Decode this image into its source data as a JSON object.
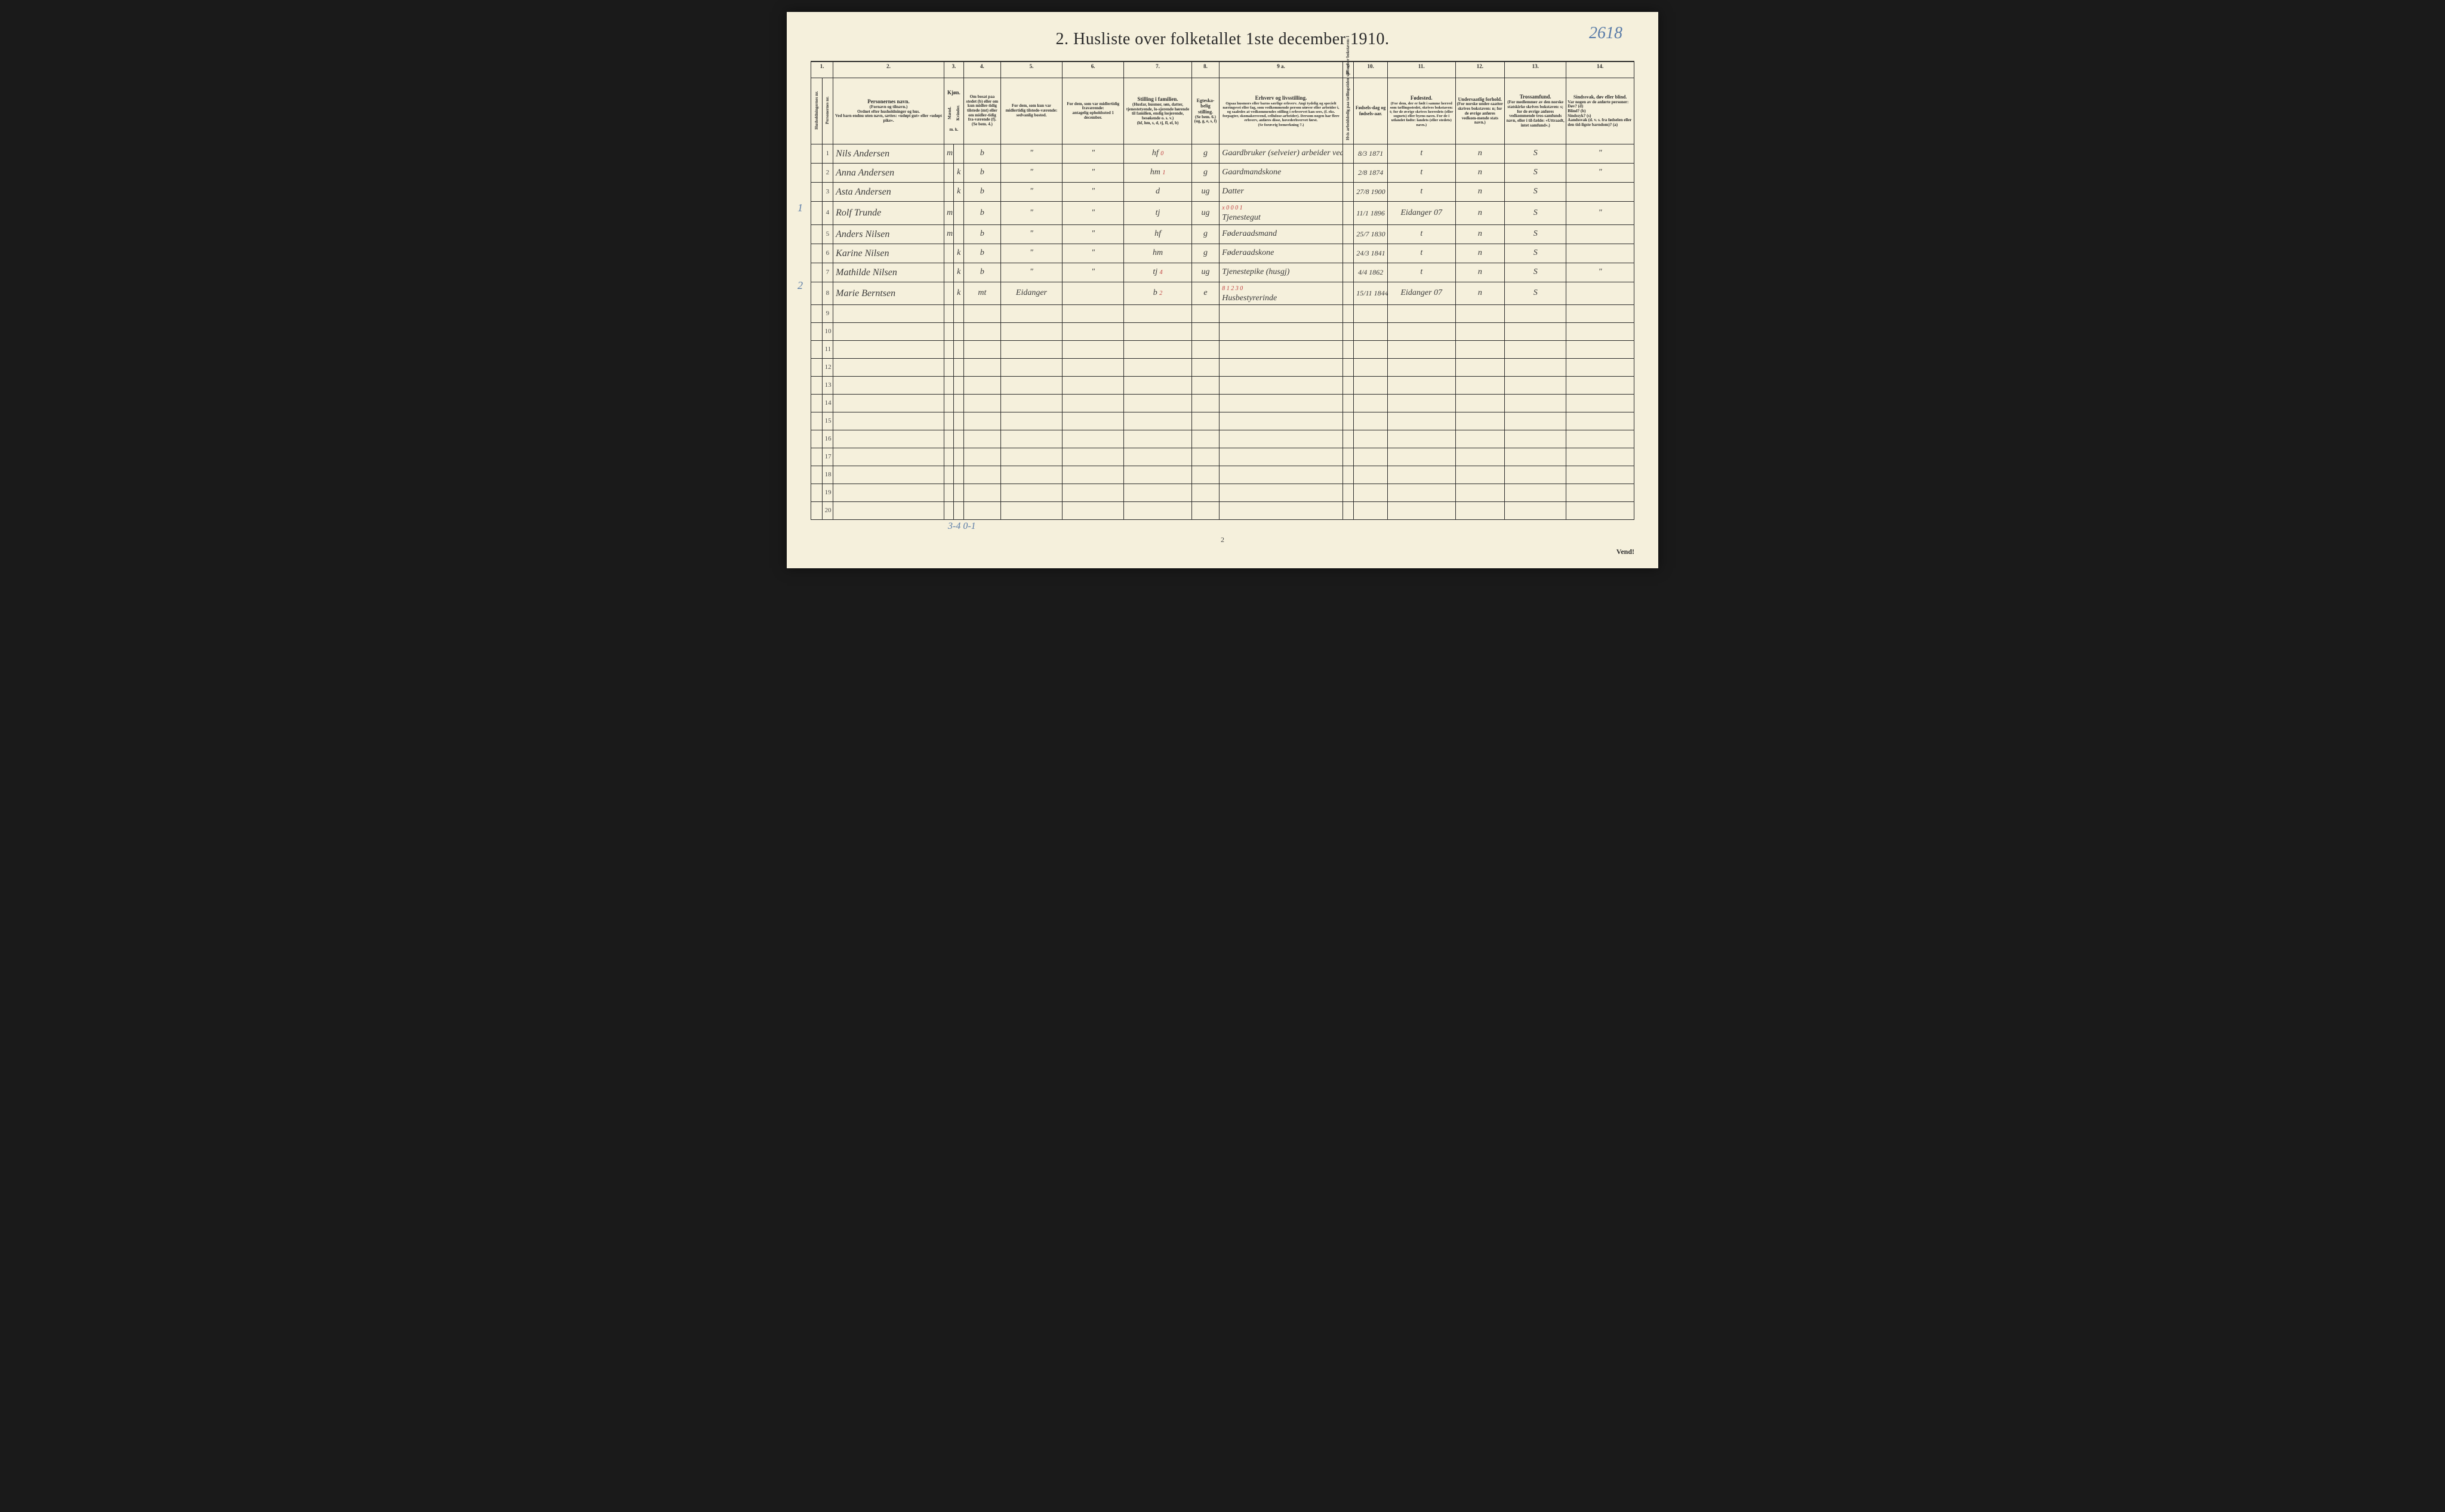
{
  "page_number_handwritten": "2618",
  "title": "2.  Husliste over folketallet 1ste december 1910.",
  "footer_page": "2",
  "vend": "Vend!",
  "bottom_pencil": "3-4    0-1",
  "margin_annotations": {
    "row1": "1",
    "row5": "2"
  },
  "column_numbers": [
    "1.",
    "2.",
    "3.",
    "4.",
    "5.",
    "6.",
    "7.",
    "8.",
    "9 a.",
    "9 b.",
    "10.",
    "11.",
    "12.",
    "13.",
    "14."
  ],
  "headers": {
    "col1": "Husholdningernes nr.",
    "col1b": "Personernes nr.",
    "col2_label": "Personernes navn.",
    "col2_sub": "(Fornavn og tilnavn.)\nOrdnet efter husholdninger og hus.\nVed barn endnu uten navn, sættes: «udøpt gut» eller «udøpt pike».",
    "col3_label": "Kjøn.",
    "col3_m": "Mænd.",
    "col3_k": "Kvinder.",
    "col3_mk": "m.  k.",
    "col4": "Om bosat paa stedet (b) eller om kun midler-tidig tilstede (mt) eller om midler-tidig fra-værende (f).\n(Se bem. 4.)",
    "col5": "For dem, som kun var midlertidig tilstede-værende:\nsedvanlig bosted.",
    "col6": "For dem, som var midlertidig fraværende:\nantagelig opholdssted 1 december.",
    "col7_label": "Stilling i familien.",
    "col7_sub": "(Husfar, husmor, søn, datter, tjenestetyende, lo-sjerende hørende til familien, enslig losjerende, besøkende o. s. v.)\n(hf, hm, s, d, tj, fl, el, b)",
    "col8_label": "Egteska-belig stilling.",
    "col8_sub": "(Se bem. 6.)\n(ug, g, e, s, f)",
    "col9a_label": "Erhverv og livsstilling.",
    "col9a_sub": "Ogsaa husmors eller barns særlige erhverv. Angi tydelig og specielt næringsvei eller fag, som vedkommende person utøver eller arbeider i, og saaledes at vedkommendes stilling i erhvervet kan sees, (f. eks. forpagter, skomakersvend, cellulose-arbeider). Dersom nogen har flere erhverv, anføres disse, hovederhvervet først.\n(Se forøvrig bemerkning 7.)",
    "col9b": "Hvis arbeidsledig paa tællingstiden sættes her bokstaven: l",
    "col10_label": "Fødsels-dag og fødsels-aar.",
    "col11_label": "Fødested.",
    "col11_sub": "(For dem, der er født i samme herred som tællingsstedet, skrives bokstaven: t; for de øvrige skrives herredets (eller sognets) eller byens navn. For de i utlandet fødte: landets (eller stedets) navn.)",
    "col12_label": "Undersaatlig forhold.",
    "col12_sub": "(For norske under-saatter skrives bokstaven: n; for de øvrige anføres vedkom-mende stats navn.)",
    "col13_label": "Trossamfund.",
    "col13_sub": "(For medlemmer av den norske statskirke skrives bokstaven: s; for de øvrige anføres vedkommende tros-samfunds navn, eller i til-fælde: «Uttraadt, intet samfund».)",
    "col14_label": "Sindssvak, døv eller blind.",
    "col14_sub": "Var nogen av de anførte personer:\nDøv?    (d)\nBlind?   (b)\nSindssyk? (s)\nAandssvak (d. v. s. fra fødselen eller den tid-ligste barndom)? (a)"
  },
  "rows": [
    {
      "num": "1",
      "name": "Nils Andersen",
      "sex": "m",
      "res": "b",
      "c5": "\"",
      "c6": "\"",
      "fam": "hf",
      "famnote": "0",
      "mar": "g",
      "occ": "Gaardbruker (selveier) arbeider ved skogdrift",
      "dob": "8/3 1871",
      "birthplace": "t",
      "nat": "n",
      "rel": "S",
      "c14": "\""
    },
    {
      "num": "2",
      "name": "Anna Andersen",
      "sex": "k",
      "res": "b",
      "c5": "\"",
      "c6": "\"",
      "fam": "hm",
      "famnote": "1",
      "mar": "g",
      "occ": "Gaardmandskone",
      "dob": "2/8 1874",
      "birthplace": "t",
      "nat": "n",
      "rel": "S",
      "c14": "\""
    },
    {
      "num": "3",
      "name": "Asta Andersen",
      "sex": "k",
      "res": "b",
      "c5": "\"",
      "c6": "\"",
      "fam": "d",
      "mar": "ug",
      "occ": "Datter",
      "dob": "27/8 1900",
      "birthplace": "t",
      "nat": "n",
      "rel": "S",
      "c14": ""
    },
    {
      "num": "4",
      "name": "Rolf Trunde",
      "sex": "m",
      "res": "b",
      "c5": "\"",
      "c6": "\"",
      "fam": "tj",
      "mar": "ug",
      "occ": "Tjenestegut",
      "occnote": "x 0 0 0 1",
      "dob": "11/1 1896",
      "birthplace": "Eidanger 07",
      "nat": "n",
      "rel": "S",
      "c14": "\""
    },
    {
      "num": "5",
      "name": "Anders Nilsen",
      "sex": "m",
      "res": "b",
      "c5": "\"",
      "c6": "\"",
      "fam": "hf",
      "mar": "g",
      "occ": "Føderaadsmand",
      "dob": "25/7 1830",
      "birthplace": "t",
      "nat": "n",
      "rel": "S",
      "c14": ""
    },
    {
      "num": "6",
      "name": "Karine Nilsen",
      "sex": "k",
      "res": "b",
      "c5": "\"",
      "c6": "\"",
      "fam": "hm",
      "mar": "g",
      "occ": "Føderaadskone",
      "dob": "24/3 1841",
      "birthplace": "t",
      "nat": "n",
      "rel": "S",
      "c14": ""
    },
    {
      "num": "7",
      "name": "Mathilde Nilsen",
      "sex": "k",
      "res": "b",
      "c5": "\"",
      "c6": "\"",
      "fam": "tj",
      "famnote": "4",
      "mar": "ug",
      "occ": "Tjenestepike (husgj)",
      "dob": "4/4 1862",
      "birthplace": "t",
      "nat": "n",
      "rel": "S",
      "c14": "\""
    },
    {
      "num": "8",
      "name": "Marie Berntsen",
      "sex": "k",
      "res": "mt",
      "c5": "Eidanger",
      "c6": "",
      "fam": "b",
      "famnote": "2",
      "mar": "e",
      "occ": "Husbestyrerinde",
      "occnote": "8 1 2 3 0",
      "dob": "15/11 1844",
      "birthplace": "Eidanger 07",
      "nat": "n",
      "rel": "S",
      "c14": ""
    }
  ],
  "empty_rows": [
    "9",
    "10",
    "11",
    "12",
    "13",
    "14",
    "15",
    "16",
    "17",
    "18",
    "19",
    "20"
  ],
  "col_widths": {
    "c1a": 18,
    "c1b": 18,
    "c2": 180,
    "c3a": 16,
    "c3b": 16,
    "c4": 60,
    "c5": 100,
    "c6": 100,
    "c7": 110,
    "c8": 45,
    "c9a": 200,
    "c9b": 18,
    "c10": 55,
    "c11": 110,
    "c12": 80,
    "c13": 100,
    "c14": 110
  }
}
